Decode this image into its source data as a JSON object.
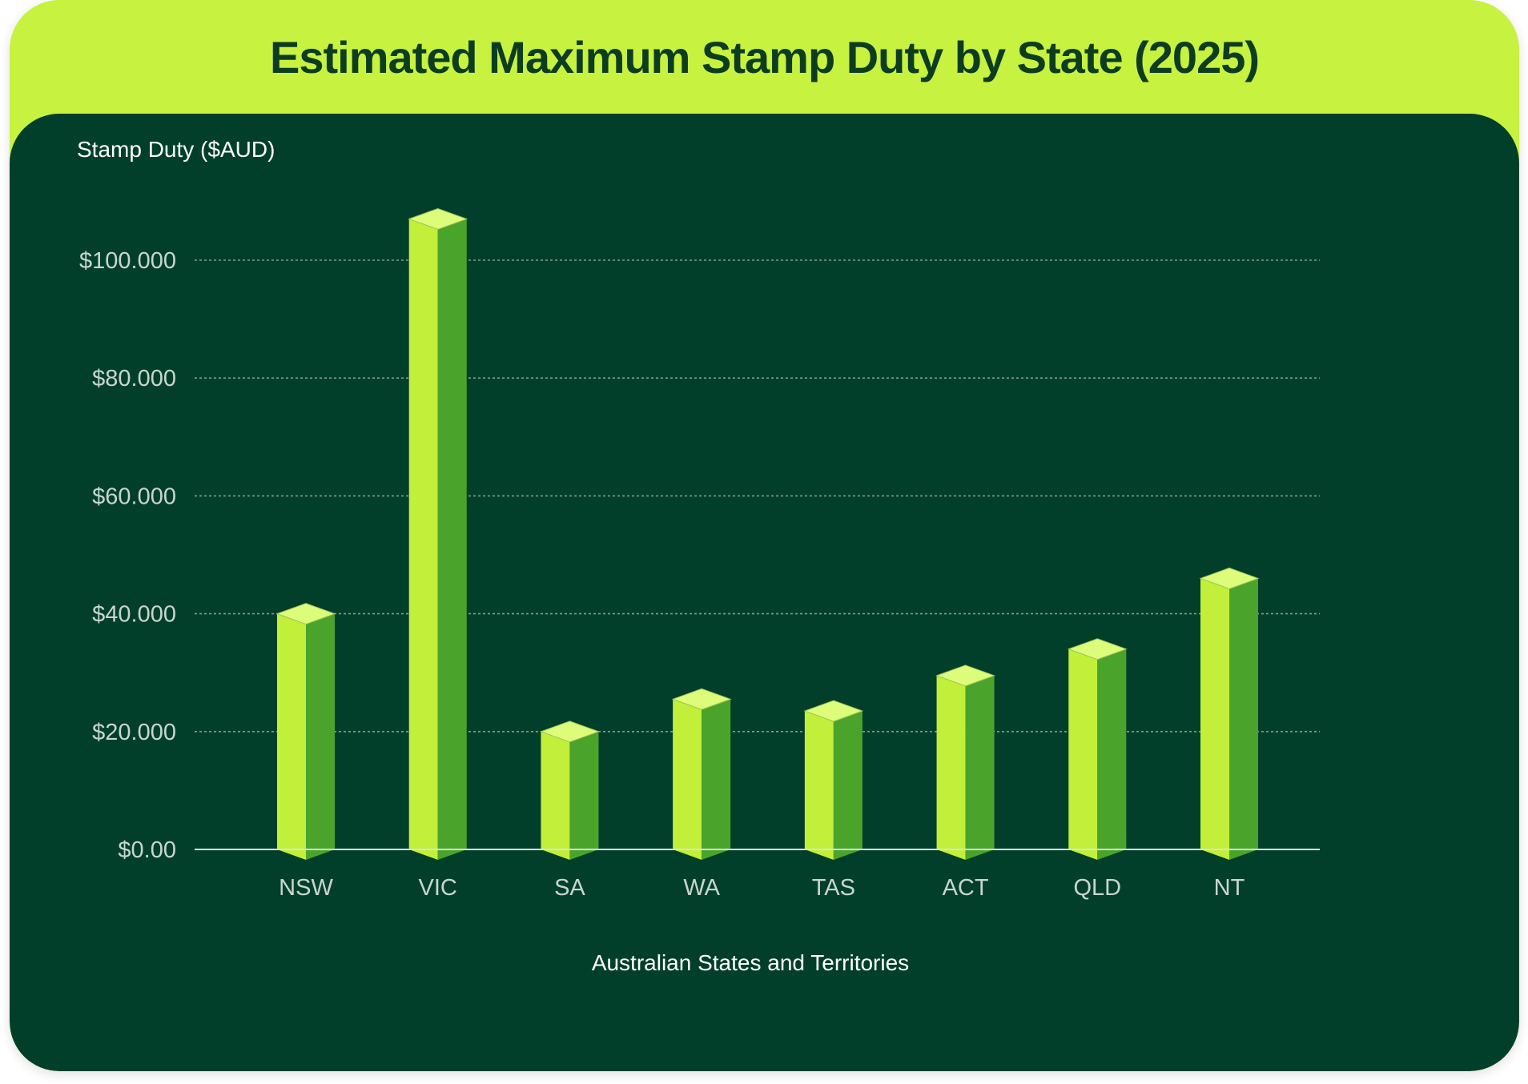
{
  "title": "Estimated Maximum Stamp Duty by State (2025)",
  "chart_data": {
    "type": "bar",
    "title": "Estimated Maximum Stamp Duty by State (2025)",
    "ylabel": "Stamp Duty ($AUD)",
    "xlabel": "Australian States and Territories",
    "categories": [
      "NSW",
      "VIC",
      "SA",
      "WA",
      "TAS",
      "ACT",
      "QLD",
      "NT"
    ],
    "values": [
      40000,
      107000,
      20000,
      25500,
      23500,
      29500,
      34000,
      46000
    ],
    "yticks": [
      0,
      20000,
      40000,
      60000,
      80000,
      100000
    ],
    "ytick_labels": [
      "$0.00",
      "$20.000",
      "$40.000",
      "$60.000",
      "$80.000",
      "$100.000"
    ],
    "ylim": [
      0,
      100000
    ],
    "grid": true,
    "colors": {
      "front": "#c1ef3a",
      "side": "#4aa42c",
      "top": "#ddfd7a",
      "grid": "#7d9e8a",
      "axis": "#d8e2dc"
    }
  }
}
